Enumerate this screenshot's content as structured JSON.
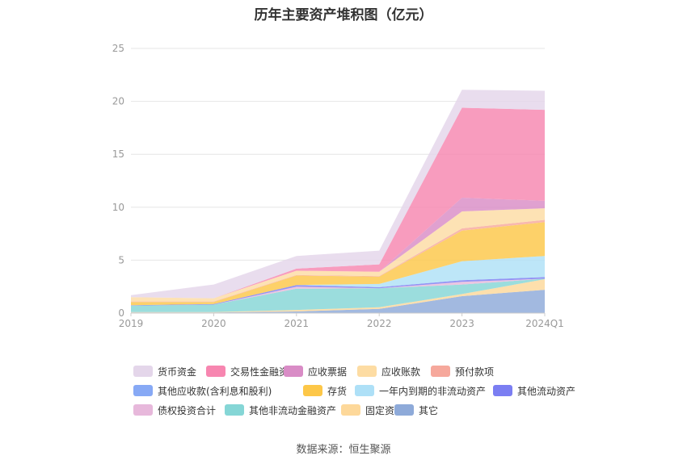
{
  "chart_data": {
    "type": "area",
    "stacked": true,
    "title": "历年主要资产堆积图（亿元）",
    "x": [
      "2019",
      "2020",
      "2021",
      "2022",
      "2023",
      "2024Q1"
    ],
    "ylim": [
      0,
      25
    ],
    "yticks": [
      0,
      5,
      10,
      15,
      20,
      25
    ],
    "grid": true,
    "legend_position": "bottom",
    "series": [
      {
        "name": "其它",
        "color": "#8eaad9",
        "values": [
          0.05,
          0.05,
          0.15,
          0.4,
          1.6,
          2.2
        ]
      },
      {
        "name": "固定资产",
        "color": "#fdd89a",
        "values": [
          0.05,
          0.05,
          0.15,
          0.15,
          0.2,
          1.0
        ]
      },
      {
        "name": "其他非流动金融资产",
        "color": "#85d6d6",
        "values": [
          0.6,
          0.7,
          2.0,
          1.8,
          0.9,
          0.05
        ]
      },
      {
        "name": "债权投资合计",
        "color": "#e7b8db",
        "values": [
          0.0,
          0.0,
          0.2,
          0.0,
          0.25,
          0.0
        ]
      },
      {
        "name": "其他流动资产",
        "color": "#7b7ef2",
        "values": [
          0.05,
          0.05,
          0.15,
          0.1,
          0.15,
          0.15
        ]
      },
      {
        "name": "一年内到期的非流动资产",
        "color": "#aee0f7",
        "values": [
          0.0,
          0.0,
          0.0,
          0.3,
          1.8,
          2.0
        ]
      },
      {
        "name": "存货",
        "color": "#fdc748",
        "values": [
          0.3,
          0.2,
          0.9,
          0.7,
          2.9,
          3.2
        ]
      },
      {
        "name": "预付款项",
        "color": "#f6a89c",
        "values": [
          0.05,
          0.05,
          0.05,
          0.05,
          0.2,
          0.2
        ]
      },
      {
        "name": "应收账款",
        "color": "#fddca3",
        "values": [
          0.4,
          0.3,
          0.4,
          0.4,
          1.6,
          1.1
        ]
      },
      {
        "name": "应收票据",
        "color": "#d98cc6",
        "values": [
          0.0,
          0.0,
          0.0,
          0.0,
          1.3,
          0.7
        ]
      },
      {
        "name": "交易性金融资产",
        "color": "#f786b0",
        "values": [
          0.0,
          0.0,
          0.2,
          0.7,
          8.5,
          8.6
        ]
      },
      {
        "name": "货币资金",
        "color": "#e4d6ea",
        "values": [
          0.2,
          1.3,
          1.2,
          1.3,
          1.7,
          1.8
        ]
      }
    ]
  },
  "legend_rows": [
    [
      {
        "name": "货币资金",
        "color": "#e4d6ea"
      },
      {
        "name": "交易性金融资产",
        "color": "#f786b0"
      },
      {
        "name": "应收票据",
        "color": "#d98cc6"
      },
      {
        "name": "应收账款",
        "color": "#fddca3"
      },
      {
        "name": "预付款项",
        "color": "#f6a89c"
      }
    ],
    [
      {
        "name": "其他应收款(含利息和股利)",
        "color": "#87a9f5"
      },
      {
        "name": "存货",
        "color": "#fdc748"
      },
      {
        "name": "一年内到期的非流动资产",
        "color": "#aee0f7"
      },
      {
        "name": "其他流动资产",
        "color": "#7b7ef2"
      }
    ],
    [
      {
        "name": "债权投资合计",
        "color": "#e7b8db"
      },
      {
        "name": "其他非流动金融资产",
        "color": "#85d6d6"
      },
      {
        "name": "固定资产",
        "color": "#fdd89a"
      },
      {
        "name": "其它",
        "color": "#8eaad9"
      }
    ]
  ],
  "source": "数据来源：恒生聚源"
}
